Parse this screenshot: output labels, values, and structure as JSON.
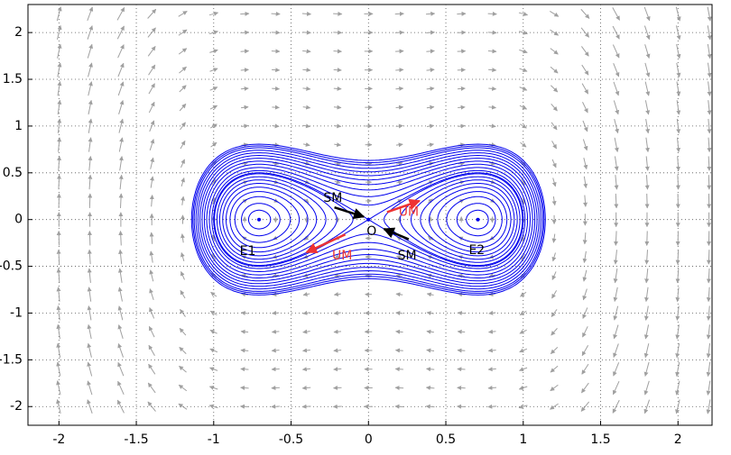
{
  "chart_data": {
    "type": "phase-portrait",
    "xlim": [
      -2.2,
      2.22
    ],
    "ylim": [
      -2.2,
      2.3
    ],
    "xticks": [
      -2,
      -1.5,
      -1,
      -0.5,
      0,
      0.5,
      1,
      1.5,
      2
    ],
    "yticks": [
      -2,
      -1.5,
      -1,
      -0.5,
      0,
      0.5,
      1,
      1.5,
      2
    ],
    "grid": true,
    "orbit_color": "#0000ee",
    "field_color": "#a0a0a0",
    "orbit_levels": [
      -0.12,
      -0.11,
      -0.095,
      -0.08,
      -0.065,
      -0.05,
      -0.035,
      -0.02,
      -0.005,
      0,
      0.012,
      0.03,
      0.05,
      0.07,
      0.09,
      0.11,
      0.13,
      0.15,
      0.17,
      0.185,
      0.2
    ],
    "points": [
      {
        "label": "E1",
        "x": -0.707,
        "y": 0,
        "label_x": -0.78,
        "label_y": -0.34
      },
      {
        "label": "O",
        "x": 0,
        "y": 0,
        "label_x": 0.02,
        "label_y": -0.13
      },
      {
        "label": "E2",
        "x": 0.707,
        "y": 0,
        "label_x": 0.7,
        "label_y": -0.33
      }
    ],
    "manifold_arrows": [
      {
        "label": "SM",
        "color": "#000000",
        "x0": -0.22,
        "y0": 0.13,
        "x1": -0.03,
        "y1": 0.03,
        "label_x": -0.23,
        "label_y": 0.23
      },
      {
        "label": "UM",
        "color": "#ee3333",
        "x0": 0.12,
        "y0": 0.08,
        "x1": 0.33,
        "y1": 0.2,
        "label_x": 0.26,
        "label_y": 0.08
      },
      {
        "label": "UM",
        "color": "#ee3333",
        "x0": -0.15,
        "y0": -0.16,
        "x1": -0.4,
        "y1": -0.35,
        "label_x": -0.17,
        "label_y": -0.39
      },
      {
        "label": "SM",
        "color": "#000000",
        "x0": 0.26,
        "y0": -0.21,
        "x1": 0.1,
        "y1": -0.1,
        "label_x": 0.25,
        "label_y": -0.39
      }
    ]
  }
}
